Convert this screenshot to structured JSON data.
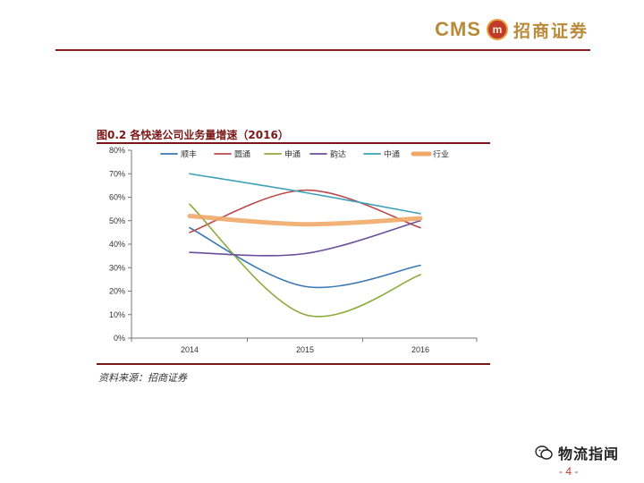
{
  "header": {
    "brand_cms": "CMS",
    "brand_seal": "m",
    "brand_name": "招商证券",
    "accent": "#8e1c1c",
    "brand_color": "#b98a3a"
  },
  "figure": {
    "title": "图0.2 各快递公司业务量增速（2016）",
    "source": "资料来源：招商证券"
  },
  "chart_data": {
    "type": "line",
    "title": "图0.2 各快递公司业务量增速（2016）",
    "xlabel": "",
    "ylabel": "",
    "categories": [
      "2014",
      "2015",
      "2016"
    ],
    "ylim": [
      0,
      0.8
    ],
    "yticks": [
      "0%",
      "10%",
      "20%",
      "30%",
      "40%",
      "50%",
      "60%",
      "70%",
      "80%"
    ],
    "legend_position": "top",
    "grid": false,
    "series": [
      {
        "name": "顺丰",
        "values": [
          0.47,
          0.22,
          0.31
        ],
        "color": "#3a78b4"
      },
      {
        "name": "圆通",
        "values": [
          0.45,
          0.63,
          0.47
        ],
        "color": "#b84a4a"
      },
      {
        "name": "申通",
        "values": [
          0.57,
          0.1,
          0.27
        ],
        "color": "#8cab3c"
      },
      {
        "name": "韵达",
        "values": [
          0.365,
          0.36,
          0.5
        ],
        "color": "#6b4e9b"
      },
      {
        "name": "中通",
        "values": [
          0.7,
          0.62,
          0.53
        ],
        "color": "#3d9fb8"
      },
      {
        "name": "行业",
        "values": [
          0.52,
          0.485,
          0.51
        ],
        "color": "#f0a868"
      }
    ]
  },
  "watermark": {
    "text": "物流指闻",
    "icon": "wechat-icon"
  },
  "footer": {
    "page": "- 4 -"
  }
}
